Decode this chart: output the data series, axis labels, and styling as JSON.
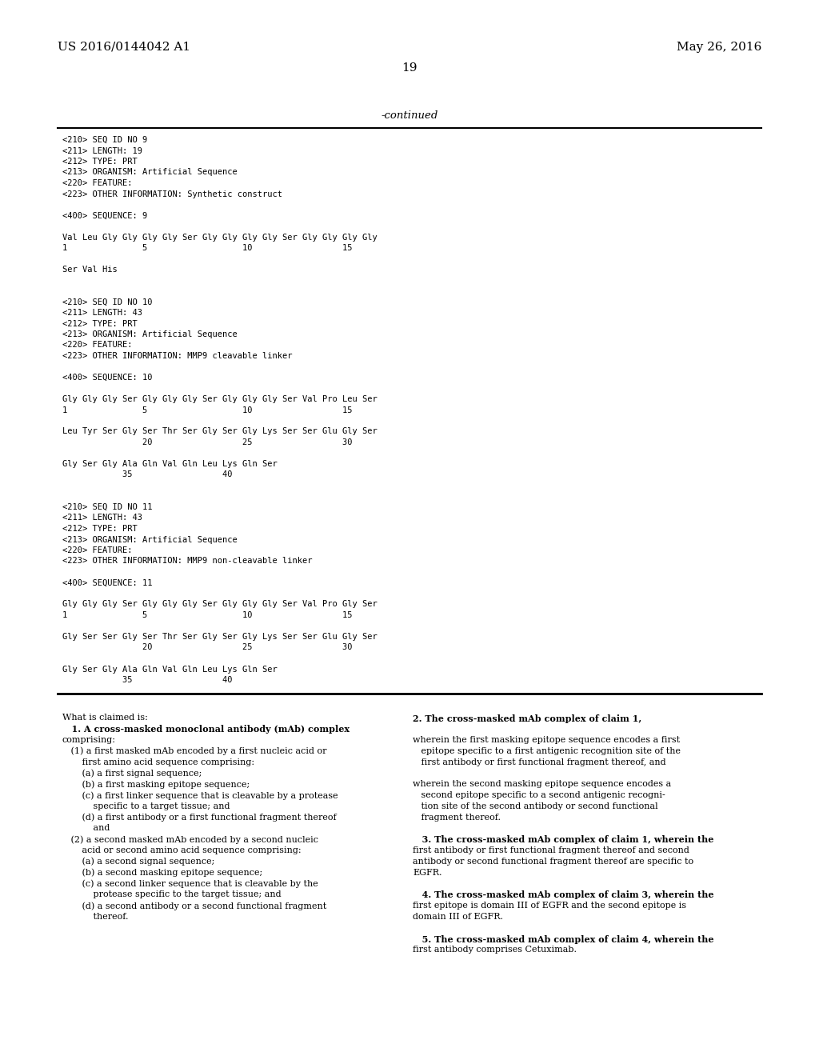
{
  "background_color": "#ffffff",
  "header_left": "US 2016/0144042 A1",
  "header_right": "May 26, 2016",
  "page_number": "19",
  "continued_label": "-continued",
  "monospace_lines": [
    "<210> SEQ ID NO 9",
    "<211> LENGTH: 19",
    "<212> TYPE: PRT",
    "<213> ORGANISM: Artificial Sequence",
    "<220> FEATURE:",
    "<223> OTHER INFORMATION: Synthetic construct",
    "",
    "<400> SEQUENCE: 9",
    "",
    "Val Leu Gly Gly Gly Gly Ser Gly Gly Gly Gly Ser Gly Gly Gly Gly",
    "1               5                   10                  15",
    "",
    "Ser Val His",
    "",
    "",
    "<210> SEQ ID NO 10",
    "<211> LENGTH: 43",
    "<212> TYPE: PRT",
    "<213> ORGANISM: Artificial Sequence",
    "<220> FEATURE:",
    "<223> OTHER INFORMATION: MMP9 cleavable linker",
    "",
    "<400> SEQUENCE: 10",
    "",
    "Gly Gly Gly Ser Gly Gly Gly Ser Gly Gly Gly Ser Val Pro Leu Ser",
    "1               5                   10                  15",
    "",
    "Leu Tyr Ser Gly Ser Thr Ser Gly Ser Gly Lys Ser Ser Glu Gly Ser",
    "                20                  25                  30",
    "",
    "Gly Ser Gly Ala Gln Val Gln Leu Lys Gln Ser",
    "            35                  40",
    "",
    "",
    "<210> SEQ ID NO 11",
    "<211> LENGTH: 43",
    "<212> TYPE: PRT",
    "<213> ORGANISM: Artificial Sequence",
    "<220> FEATURE:",
    "<223> OTHER INFORMATION: MMP9 non-cleavable linker",
    "",
    "<400> SEQUENCE: 11",
    "",
    "Gly Gly Gly Ser Gly Gly Gly Ser Gly Gly Gly Ser Val Pro Gly Ser",
    "1               5                   10                  15",
    "",
    "Gly Ser Ser Gly Ser Thr Ser Gly Ser Gly Lys Ser Ser Glu Gly Ser",
    "                20                  25                  30",
    "",
    "Gly Ser Gly Ala Gln Val Gln Leu Lys Gln Ser",
    "            35                  40"
  ],
  "claims_left": [
    [
      "What is claimed is:",
      false
    ],
    [
      "   1. A cross-masked monoclonal antibody (mAb) complex",
      true
    ],
    [
      "comprising:",
      false
    ],
    [
      "   (1) a first masked mAb encoded by a first nucleic acid or",
      false
    ],
    [
      "       first amino acid sequence comprising:",
      false
    ],
    [
      "       (a) a first signal sequence;",
      false
    ],
    [
      "       (b) a first masking epitope sequence;",
      false
    ],
    [
      "       (c) a first linker sequence that is cleavable by a protease",
      false
    ],
    [
      "           specific to a target tissue; and",
      false
    ],
    [
      "       (d) a first antibody or a first functional fragment thereof",
      false
    ],
    [
      "           and",
      false
    ],
    [
      "   (2) a second masked mAb encoded by a second nucleic",
      false
    ],
    [
      "       acid or second amino acid sequence comprising:",
      false
    ],
    [
      "       (a) a second signal sequence;",
      false
    ],
    [
      "       (b) a second masking epitope sequence;",
      false
    ],
    [
      "       (c) a second linker sequence that is cleavable by the",
      false
    ],
    [
      "           protease specific to the target tissue; and",
      false
    ],
    [
      "       (d) a second antibody or a second functional fragment",
      false
    ],
    [
      "           thereof.",
      false
    ]
  ],
  "claims_right": [
    [
      "2. The cross-masked mAb complex of claim 1,",
      true
    ],
    [
      "",
      false
    ],
    [
      "wherein the first masking epitope sequence encodes a first",
      false
    ],
    [
      "   epitope specific to a first antigenic recognition site of the",
      false
    ],
    [
      "   first antibody or first functional fragment thereof, and",
      false
    ],
    [
      "",
      false
    ],
    [
      "wherein the second masking epitope sequence encodes a",
      false
    ],
    [
      "   second epitope specific to a second antigenic recogni-",
      false
    ],
    [
      "   tion site of the second antibody or second functional",
      false
    ],
    [
      "   fragment thereof.",
      false
    ],
    [
      "",
      false
    ],
    [
      "   3. The cross-masked mAb complex of claim 1, wherein the",
      true
    ],
    [
      "first antibody or first functional fragment thereof and second",
      false
    ],
    [
      "antibody or second functional fragment thereof are specific to",
      false
    ],
    [
      "EGFR.",
      false
    ],
    [
      "",
      false
    ],
    [
      "   4. The cross-masked mAb complex of claim 3, wherein the",
      true
    ],
    [
      "first epitope is domain III of EGFR and the second epitope is",
      false
    ],
    [
      "domain III of EGFR.",
      false
    ],
    [
      "",
      false
    ],
    [
      "   5. The cross-masked mAb complex of claim 4, wherein the",
      true
    ],
    [
      "first antibody comprises Cetuximab.",
      false
    ]
  ],
  "mono_fontsize": 7.5,
  "claims_fontsize": 8.0,
  "header_fontsize": 11.0,
  "page_num_fontsize": 11.0
}
